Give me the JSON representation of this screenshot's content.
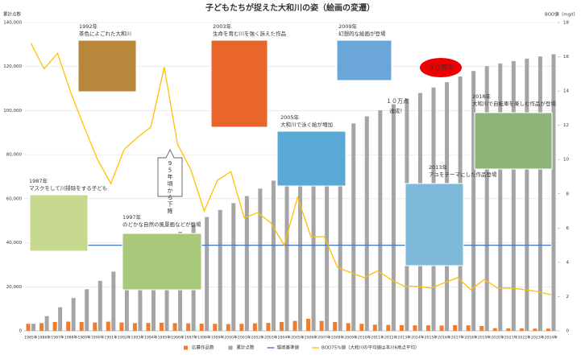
{
  "chart_data": {
    "type": "combo",
    "title": "子どもたちが捉えた大和川の姿（絵画の変遷）",
    "y_label": "累計点数",
    "y2_label": "BOD値（mg/l）",
    "categories": [
      "1985年",
      "1986年",
      "1987年",
      "1988年",
      "1989年",
      "1990年",
      "1991年",
      "1992年",
      "1993年",
      "1994年",
      "1995年",
      "1996年",
      "1997年",
      "1998年",
      "1999年",
      "2000年",
      "2001年",
      "2002年",
      "2003年",
      "2004年",
      "2005年",
      "2006年",
      "2007年",
      "2008年",
      "2009年",
      "2010年",
      "2011年",
      "2012年",
      "2013年",
      "2014年",
      "2015年",
      "2016年",
      "2017年",
      "2018年",
      "2019年",
      "2020年",
      "2021年",
      "2022年",
      "2023年",
      "2024年"
    ],
    "series": [
      {
        "name": "応募作品数",
        "kind": "bar",
        "color": "#ed7d31",
        "values": [
          3200,
          3500,
          4000,
          4200,
          4000,
          3800,
          4200,
          3800,
          3500,
          3600,
          3700,
          3500,
          3400,
          3300,
          3200,
          3100,
          3200,
          3400,
          3600,
          4000,
          4500,
          5500,
          4500,
          4000,
          3500,
          3200,
          2800,
          2700,
          2600,
          2500,
          2500,
          2400,
          2600,
          2500,
          2200,
          1200,
          1100,
          1100,
          1000,
          1000
        ]
      },
      {
        "name": "累計点数",
        "kind": "bar",
        "color": "#a5a5a5",
        "values": [
          3200,
          6700,
          10700,
          14900,
          18900,
          22700,
          26900,
          30700,
          34200,
          37800,
          41500,
          45000,
          48400,
          51700,
          54900,
          58000,
          61200,
          64600,
          68200,
          72200,
          76700,
          82200,
          86700,
          90700,
          94200,
          97400,
          100200,
          102900,
          105500,
          108000,
          110500,
          112900,
          115500,
          118000,
          120200,
          121400,
          122500,
          123600,
          124600,
          125600
        ]
      },
      {
        "name": "環境基準値",
        "kind": "line",
        "axis": "y2",
        "color": "#4472c4",
        "values": [
          5,
          5,
          5,
          5,
          5,
          5,
          5,
          5,
          5,
          5,
          5,
          5,
          5,
          5,
          5,
          5,
          5,
          5,
          5,
          5,
          5,
          5,
          5,
          5,
          5,
          5,
          5,
          5,
          5,
          5,
          5,
          5,
          5,
          5,
          5,
          5,
          5,
          5,
          5,
          5
        ]
      },
      {
        "name": "BOD75%値（大和川の平均値は本川6地点平均）",
        "kind": "line",
        "axis": "y2",
        "color": "#ffc000",
        "values": [
          16.8,
          15.3,
          16.2,
          13.9,
          11.9,
          10.0,
          8.6,
          10.6,
          11.3,
          11.9,
          15.4,
          10.9,
          9.4,
          7.0,
          8.8,
          9.3,
          6.6,
          6.9,
          6.3,
          5.0,
          7.8,
          5.5,
          5.5,
          3.7,
          3.4,
          3.1,
          3.5,
          3.0,
          2.6,
          2.6,
          2.5,
          2.8,
          3.1,
          2.4,
          3.0,
          2.5,
          2.5,
          2.4,
          2.3,
          2.1
        ]
      }
    ],
    "ylim": [
      0,
      140000
    ],
    "yticks": [
      0,
      {
        "value": 20000,
        "label": "20,000"
      },
      {
        "value": 40000,
        "label": "40,000"
      },
      {
        "value": 60000,
        "label": "60,000"
      },
      {
        "value": 80000,
        "label": "80,000"
      },
      {
        "value": 100000,
        "label": "100,000"
      },
      {
        "value": 120000,
        "label": "120,000"
      },
      {
        "value": 140000,
        "label": "140,000"
      }
    ],
    "y2lim": [
      0,
      18
    ],
    "y2ticks": [
      0,
      2,
      4,
      6,
      8,
      10,
      12,
      14,
      16,
      18
    ],
    "grid": true,
    "legend": "bottom",
    "annotations": [
      {
        "year": "1992年",
        "text": "茶色によごれた大和川"
      },
      {
        "year": "2003年",
        "text": "生命を育む川を強く訴えた作品"
      },
      {
        "year": "2009年",
        "text": "幻想的な絵画が登場"
      },
      {
        "year": "1987年",
        "text": "マスクをして川掃除をする子ども"
      },
      {
        "year": "1997年",
        "text": "のどかな自然の風景画などが登場"
      },
      {
        "year": "2005年",
        "text": "大和川で泳ぐ絵が増加"
      },
      {
        "year": "2013年",
        "text": "アユをテーマにした作品登場"
      },
      {
        "year": "2018年",
        "text": "大和川で自転車を楽しむ作品が登場"
      }
    ],
    "callouts": [
      "95年頃から下降",
      "１０万点",
      "達成！",
      "３０周年"
    ]
  }
}
